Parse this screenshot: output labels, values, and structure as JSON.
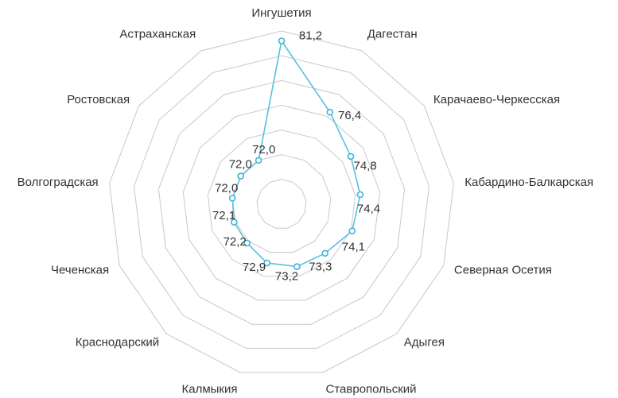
{
  "chart_data": {
    "type": "radar",
    "categories": [
      "Ингушетия",
      "Дагестан",
      "Карачаево-Черкесская",
      "Кабардино-Балкарская",
      "Северная Осетия",
      "Адыгея",
      "Ставропольский",
      "Калмыкия",
      "Краснодарский",
      "Чеченская",
      "Волгоградская",
      "Ростовская",
      "Астраханская"
    ],
    "series": [
      {
        "values": [
          81.2,
          76.4,
          74.8,
          74.4,
          74.1,
          73.3,
          73.2,
          72.9,
          72.2,
          72.1,
          72.0,
          72.0,
          72.0
        ],
        "labels": [
          "81,2",
          "76,4",
          "74,8",
          "74,4",
          "74,1",
          "73,3",
          "73,2",
          "72,9",
          "72,2",
          "72,1",
          "72,0",
          "72,0",
          "72,0"
        ]
      }
    ],
    "rlim": [
      68,
      82
    ],
    "ring_count": 7,
    "grid": true,
    "legend": "none",
    "colors": {
      "line": "#5bc0de",
      "marker": "#3cb6d8",
      "grid": "#c8c8c8",
      "text": "#333333"
    }
  }
}
